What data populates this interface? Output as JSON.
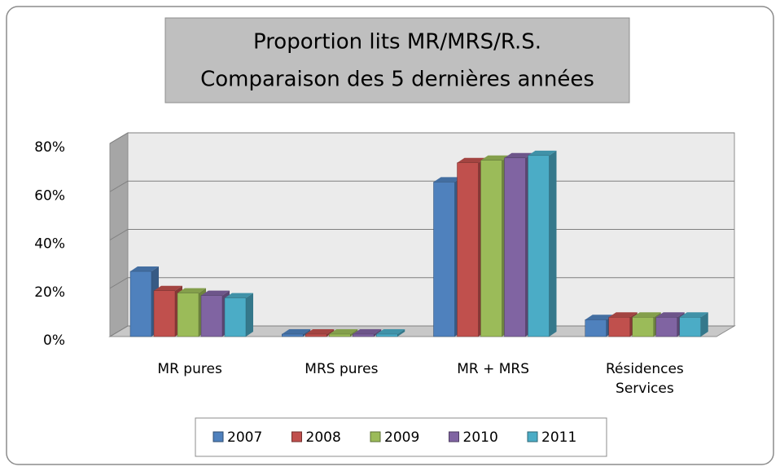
{
  "chart_data": {
    "type": "bar3d",
    "title": [
      "Proportion lits MR/MRS/R.S.",
      "Comparaison des 5 dernières années"
    ],
    "categories": [
      "MR pures",
      "MRS pures",
      "MR + MRS",
      "Résidences Services"
    ],
    "series": [
      {
        "name": "2007",
        "color": "#4f81bd",
        "values": [
          27,
          1,
          64,
          7
        ]
      },
      {
        "name": "2008",
        "color": "#c0504d",
        "values": [
          19,
          1,
          72,
          8
        ]
      },
      {
        "name": "2009",
        "color": "#9bbb59",
        "values": [
          18,
          1,
          73,
          8
        ]
      },
      {
        "name": "2010",
        "color": "#8064a2",
        "values": [
          17,
          1,
          74,
          8
        ]
      },
      {
        "name": "2011",
        "color": "#4bacc6",
        "values": [
          16,
          1,
          75,
          8
        ]
      }
    ],
    "ylim": [
      0,
      80
    ],
    "yticks": [
      {
        "value": 0,
        "label": "0%"
      },
      {
        "value": 20,
        "label": "20%"
      },
      {
        "value": 40,
        "label": "40%"
      },
      {
        "value": 60,
        "label": "60%"
      },
      {
        "value": 80,
        "label": "80%"
      }
    ],
    "grid": true,
    "legend": "bottom"
  }
}
